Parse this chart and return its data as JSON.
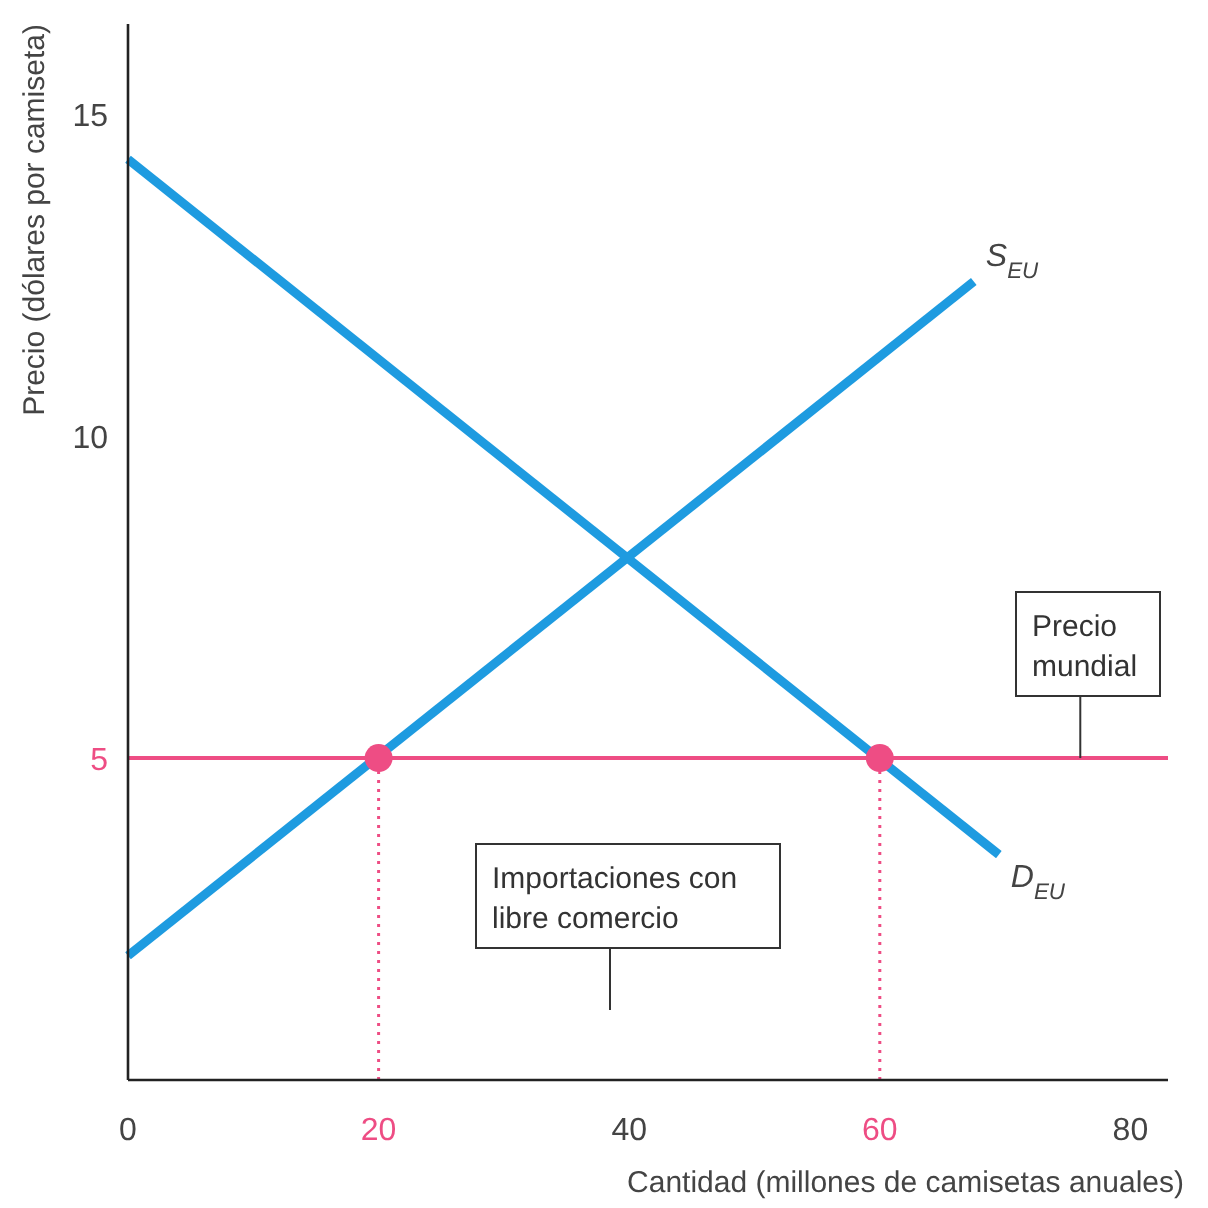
{
  "chart_data": {
    "type": "line",
    "xlabel": "Cantidad (millones de camisetas anuales)",
    "ylabel": "Precio (dólares por camiseta)",
    "xlim": [
      0,
      83
    ],
    "ylim": [
      0,
      16.4
    ],
    "xticks": [
      0,
      20,
      40,
      60,
      80
    ],
    "yticks": [
      5,
      10,
      15
    ],
    "series": [
      {
        "name": "S$_{EU}$",
        "color": "#1e9be0",
        "x": [
          0,
          67.5
        ],
        "values": [
          1.93,
          12.4
        ]
      },
      {
        "name": "D$_{EU}$",
        "color": "#1e9be0",
        "x": [
          0,
          69.5
        ],
        "values": [
          14.3,
          3.5
        ]
      },
      {
        "type": "scatter",
        "color": "#ee4d84",
        "x": [
          20,
          60
        ],
        "values": [
          5,
          5
        ]
      }
    ],
    "ref_lines": [
      {
        "axis": "y",
        "value": 5,
        "color": "#ee4d84",
        "line_style": "solid"
      },
      {
        "axis": "x",
        "value": 20,
        "color": "#ee4d84",
        "line_style": "dotted"
      },
      {
        "axis": "x",
        "value": 60,
        "color": "#ee4d84",
        "line_style": "dotted"
      }
    ],
    "annotations": [
      {
        "text": "Precio mundial",
        "x": 76,
        "y": 5
      },
      "Importaciones con libre comercio"
    ]
  }
}
